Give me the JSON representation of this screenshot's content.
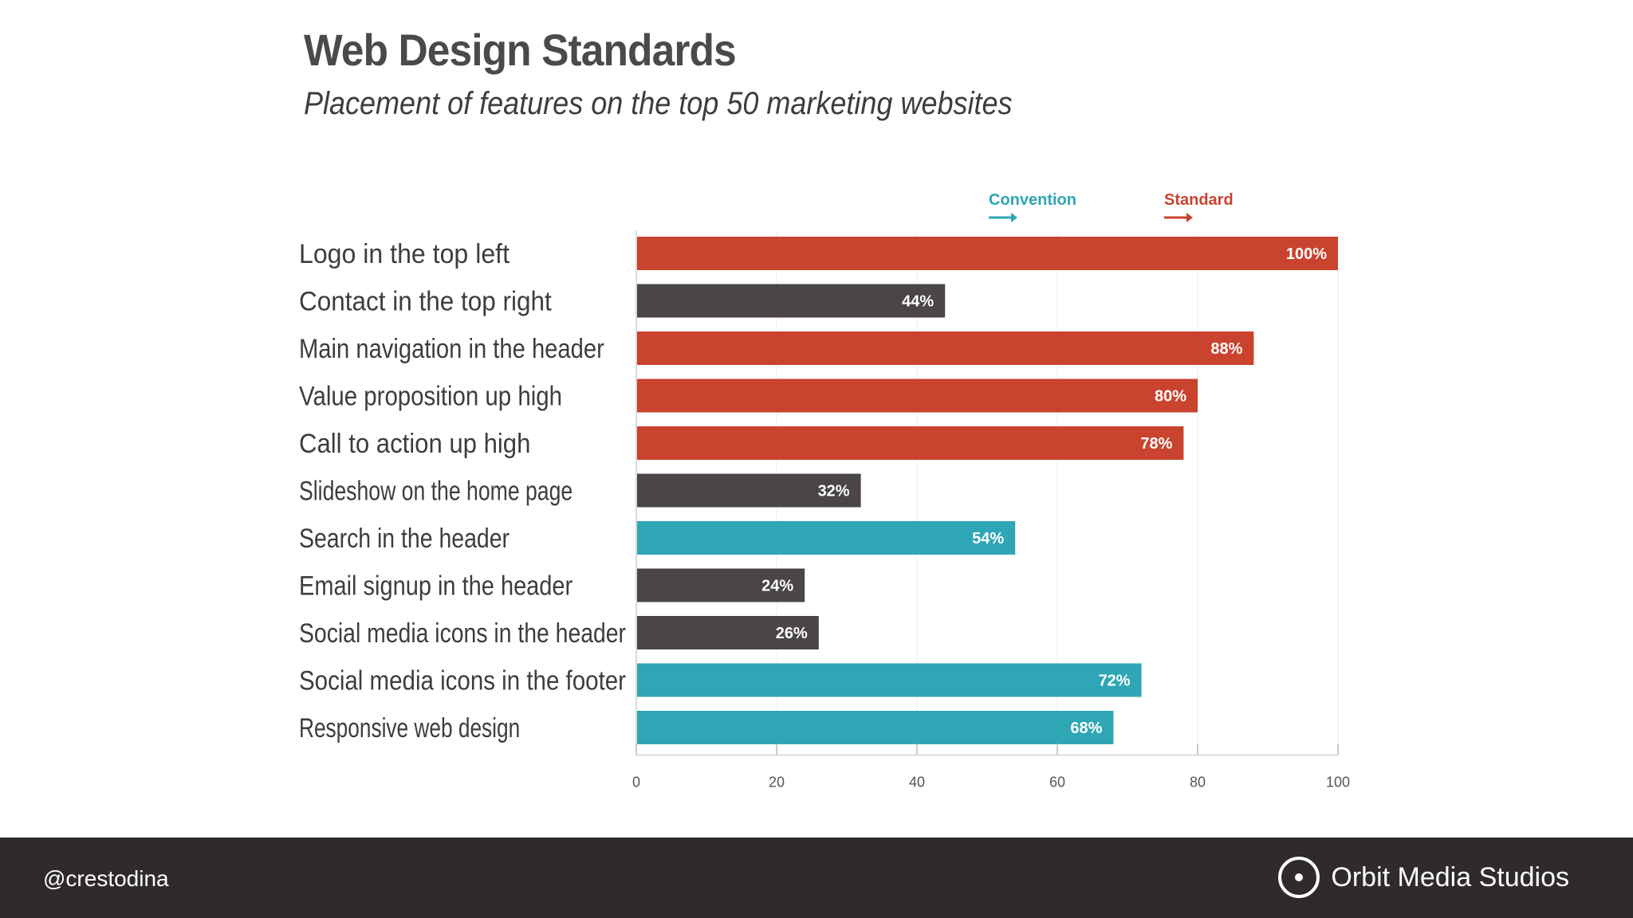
{
  "header": {
    "title": "Web Design Standards",
    "subtitle": "Placement of features on the top 50 marketing websites"
  },
  "legend": {
    "convention": "Convention",
    "standard": "Standard"
  },
  "colors": {
    "standard": "#c9432f",
    "convention": "#2ea6b5",
    "other": "#4a4546",
    "footer_bg": "#2f2a2b"
  },
  "chart_data": {
    "type": "bar",
    "orientation": "horizontal",
    "title": "Web Design Standards",
    "subtitle": "Placement of features on the top 50 marketing websites",
    "categories": [
      "Logo in the top left",
      "Contact in the top right",
      "Main navigation in the header",
      "Value proposition up high",
      "Call to action up high",
      "Slideshow on the home page",
      "Search in the header",
      "Email signup in the header",
      "Social media icons in the header",
      "Social media icons in the footer",
      "Responsive web design"
    ],
    "values": [
      100,
      44,
      88,
      80,
      78,
      32,
      54,
      24,
      26,
      72,
      68
    ],
    "value_labels": [
      "100%",
      "44%",
      "88%",
      "80%",
      "78%",
      "32%",
      "54%",
      "24%",
      "26%",
      "72%",
      "68%"
    ],
    "bar_classes": [
      "standard",
      "other",
      "standard",
      "standard",
      "standard",
      "other",
      "convention",
      "other",
      "other",
      "convention",
      "convention"
    ],
    "xlim": [
      0,
      100
    ],
    "x_ticks": [
      "0",
      "20",
      "40",
      "60",
      "80",
      "100"
    ],
    "thresholds": [
      {
        "name": "Convention",
        "value": 50
      },
      {
        "name": "Standard",
        "value": 75
      }
    ],
    "legend_placement": "top-right",
    "grid": true
  },
  "footer": {
    "handle": "@crestodina",
    "brand": "Orbit Media Studios"
  }
}
